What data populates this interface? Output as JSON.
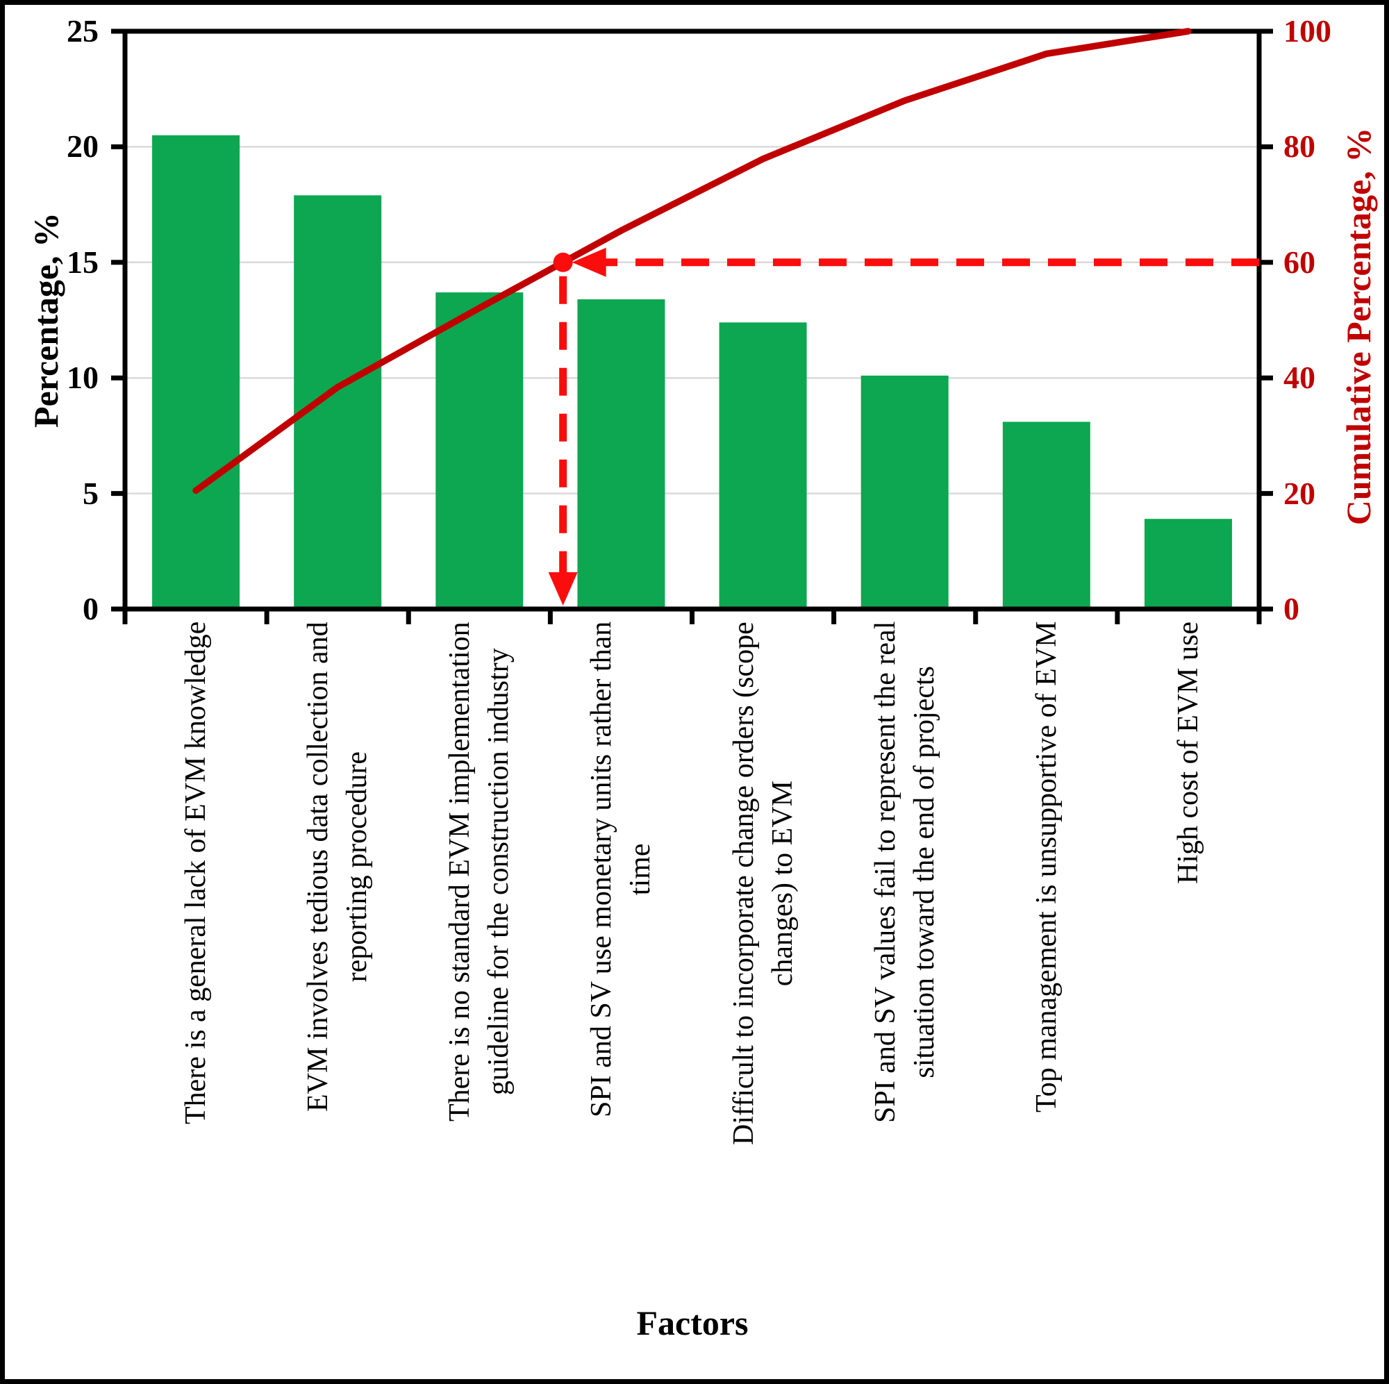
{
  "chart_data": {
    "type": "pareto",
    "subtype": "bar+cumulative-line",
    "xlabel": "Factors",
    "ylabel_left": "Percentage, %",
    "ylabel_right": "Cumulative Percentage, %",
    "categories": [
      {
        "label": "There is a general lack of EVM knowledge",
        "lines": [
          "There is a general lack of EVM knowledge"
        ]
      },
      {
        "label": "EVM involves tedious data collection and reporting procedure",
        "lines": [
          "EVM involves tedious data collection and",
          "reporting procedure"
        ]
      },
      {
        "label": "There is no standard EVM implementation guideline for the construction industry",
        "lines": [
          "There is no standard EVM implementation",
          "guideline for the construction industry"
        ]
      },
      {
        "label": "SPI and SV use monetary units rather than time",
        "lines": [
          "SPI and SV use monetary units rather than",
          "time"
        ]
      },
      {
        "label": "Difficult to incorporate change orders (scope changes) to EVM",
        "lines": [
          "Difficult to incorporate change orders (scope",
          "changes) to EVM"
        ]
      },
      {
        "label": "SPI and SV values fail to represent the real situation toward the end of projects",
        "lines": [
          "SPI and SV values fail to represent the real",
          "situation toward the end of projects"
        ]
      },
      {
        "label": "Top management is unsupportive of EVM",
        "lines": [
          "Top management is unsupportive of EVM"
        ]
      },
      {
        "label": "High cost of EVM use",
        "lines": [
          "High cost of EVM use"
        ]
      }
    ],
    "values": [
      20.5,
      17.9,
      13.7,
      13.4,
      12.4,
      10.1,
      8.1,
      3.9
    ],
    "cumulative": [
      20.5,
      38.4,
      52.1,
      65.5,
      77.9,
      88.0,
      96.1,
      100.0
    ],
    "left_axis": {
      "min": 0,
      "max": 25,
      "ticks": [
        0,
        5,
        10,
        15,
        20,
        25
      ]
    },
    "right_axis": {
      "min": 0,
      "max": 100,
      "ticks": [
        0,
        20,
        40,
        60,
        80,
        100
      ]
    },
    "reference": {
      "cumulative_value": 60,
      "note": "dashed arrows mark 60% cumulative crossing"
    },
    "grid": true,
    "legend": false,
    "colors": {
      "bar": "#0CA750",
      "cumulative_line": "#C00000",
      "reference_dashed": "#FB0D0D",
      "marker": "#FB0D0D",
      "right_axis_text": "#C00000",
      "grid": "#D9D9D9",
      "axis": "#000000",
      "text": "#000000"
    }
  }
}
